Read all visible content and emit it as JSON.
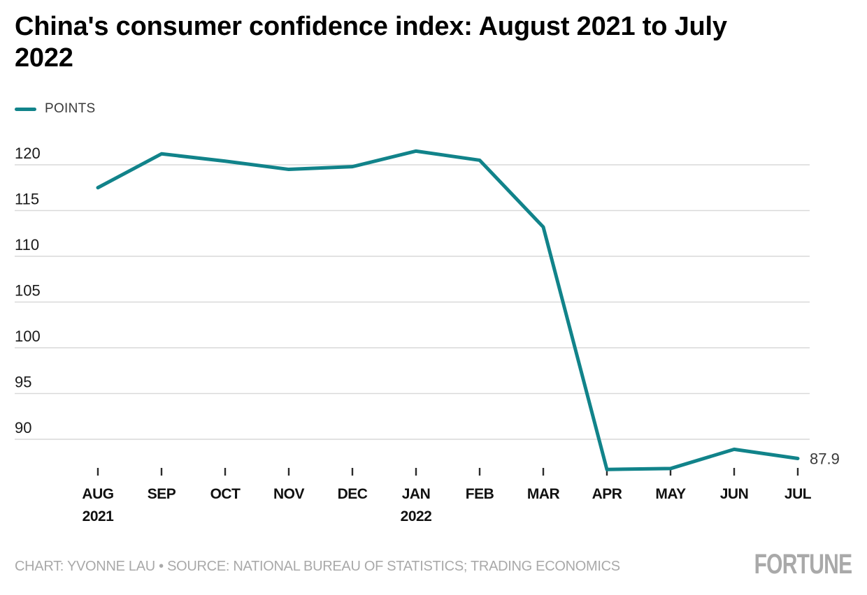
{
  "title": {
    "line1": "China's consumer confidence index: August 2021 to July",
    "line2": "2022"
  },
  "legend": {
    "label": "POINTS"
  },
  "footer": {
    "credit": "CHART: YVONNE LAU • SOURCE: NATIONAL BUREAU OF STATISTICS; TRADING ECONOMICS",
    "brand": "FORTUNE"
  },
  "colors": {
    "line": "#11838a",
    "gridline": "#d9d9d9",
    "tick": "#2b2b2b",
    "axis_text": "#1a1a1a",
    "muted_text": "#a9a9a9",
    "end_label": "#3a3a3a"
  },
  "chart_data": {
    "type": "line",
    "title": "China's consumer confidence index: August 2021 to July 2022",
    "xlabel": "",
    "ylabel": "POINTS",
    "legend_position": "top-left",
    "grid": "horizontal",
    "categories": [
      "AUG",
      "SEP",
      "OCT",
      "NOV",
      "DEC",
      "JAN",
      "FEB",
      "MAR",
      "APR",
      "MAY",
      "JUN",
      "JUL"
    ],
    "year_marks": [
      {
        "index": 0,
        "label": "2021"
      },
      {
        "index": 5,
        "label": "2022"
      }
    ],
    "series": [
      {
        "name": "POINTS",
        "color": "#11838a",
        "values": [
          117.5,
          121.2,
          120.4,
          119.5,
          119.8,
          121.5,
          120.5,
          113.2,
          86.7,
          86.8,
          88.9,
          87.9
        ]
      }
    ],
    "y_ticks": [
      120,
      115,
      110,
      105,
      100,
      95,
      90
    ],
    "ylim": [
      85,
      123.5
    ],
    "end_label": "87.9"
  }
}
